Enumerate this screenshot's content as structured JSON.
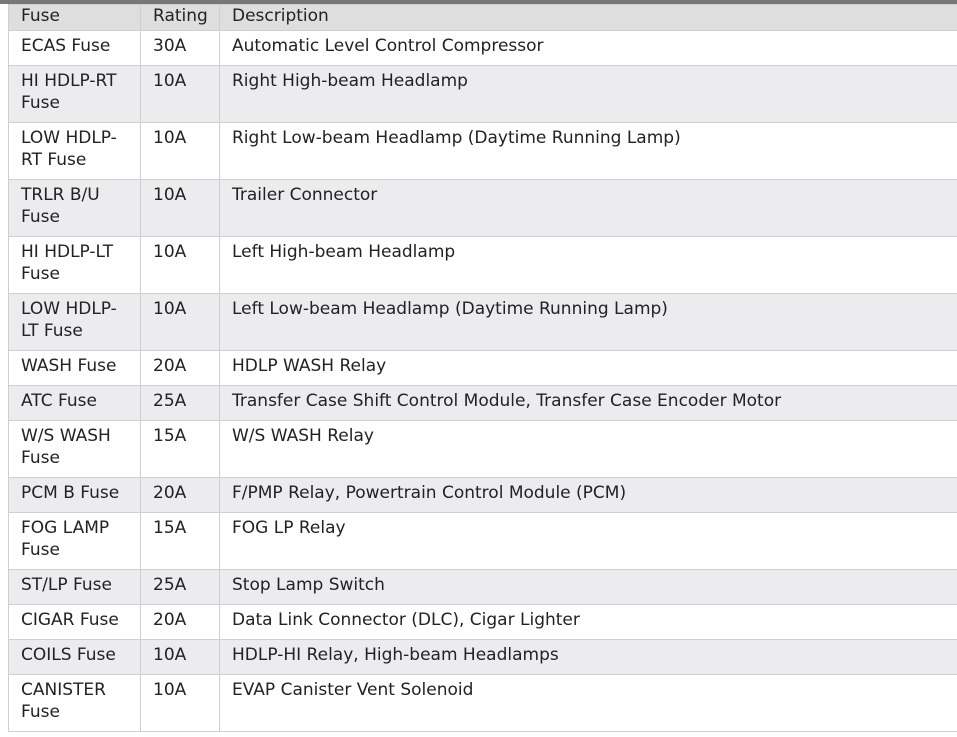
{
  "table": {
    "headers": [
      "Fuse",
      "Rating",
      "Description"
    ],
    "rows": [
      {
        "fuse": "ECAS Fuse",
        "rating": "30A",
        "description": "Automatic Level Control Compressor"
      },
      {
        "fuse": "HI HDLP-RT Fuse",
        "rating": "10A",
        "description": "Right High-beam Headlamp"
      },
      {
        "fuse": "LOW HDLP-RT Fuse",
        "rating": "10A",
        "description": "Right Low-beam Headlamp (Daytime Running Lamp)"
      },
      {
        "fuse": "TRLR B/U Fuse",
        "rating": "10A",
        "description": "Trailer Connector"
      },
      {
        "fuse": "HI HDLP-LT Fuse",
        "rating": "10A",
        "description": "Left High-beam Headlamp"
      },
      {
        "fuse": "LOW HDLP-LT Fuse",
        "rating": "10A",
        "description": "Left Low-beam Headlamp (Daytime Running Lamp)"
      },
      {
        "fuse": "WASH Fuse",
        "rating": "20A",
        "description": "HDLP WASH Relay"
      },
      {
        "fuse": "ATC Fuse",
        "rating": "25A",
        "description": "Transfer Case Shift Control Module, Transfer Case Encoder Motor"
      },
      {
        "fuse": "W/S WASH Fuse",
        "rating": "15A",
        "description": "W/S WASH Relay"
      },
      {
        "fuse": "PCM B Fuse",
        "rating": "20A",
        "description": "F/PMP Relay, Powertrain Control Module (PCM)"
      },
      {
        "fuse": "FOG LAMP Fuse",
        "rating": "15A",
        "description": "FOG LP Relay"
      },
      {
        "fuse": "ST/LP Fuse",
        "rating": "25A",
        "description": "Stop Lamp Switch"
      },
      {
        "fuse": "CIGAR Fuse",
        "rating": "20A",
        "description": "Data Link Connector (DLC), Cigar Lighter"
      },
      {
        "fuse": "COILS Fuse",
        "rating": "10A",
        "description": "HDLP-HI Relay, High-beam Headlamps"
      },
      {
        "fuse": "CANISTER Fuse",
        "rating": "10A",
        "description": "EVAP Canister Vent Solenoid"
      }
    ]
  }
}
